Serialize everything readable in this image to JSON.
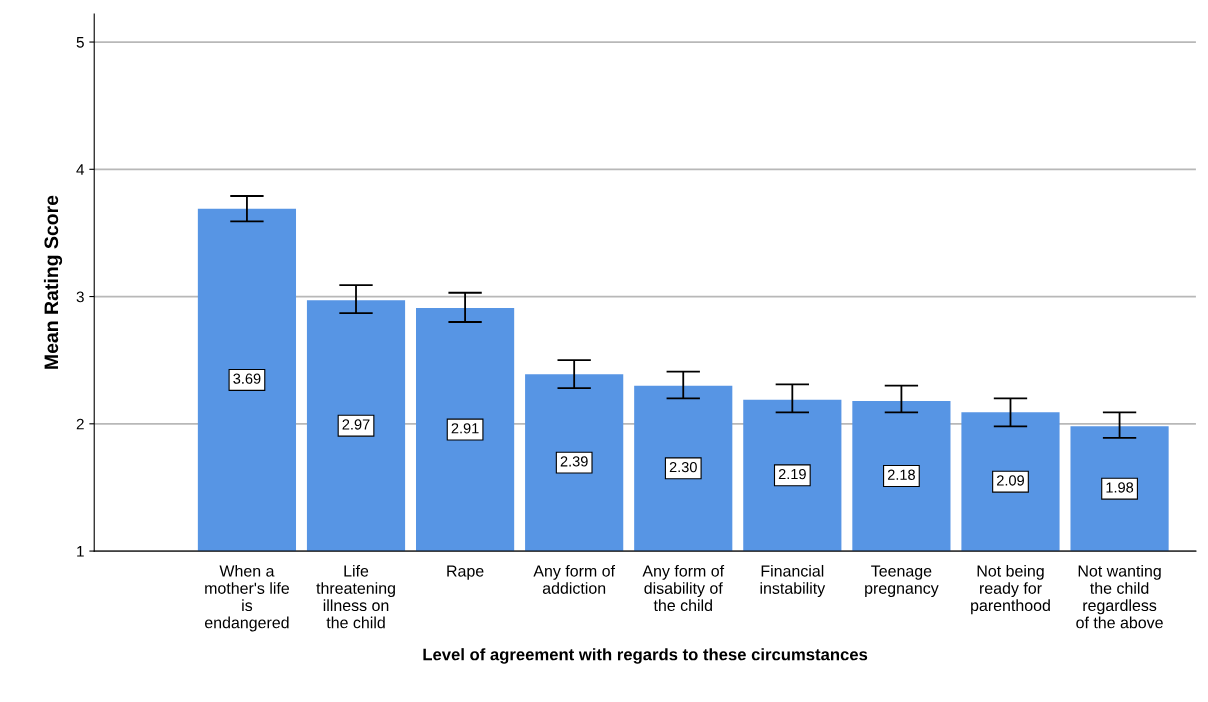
{
  "chart_data": {
    "type": "bar",
    "xlabel": "Level of agreement with regards to these circumstances",
    "ylabel": "Mean Rating Score",
    "categories": [
      "When a\nmother's life\nis\nendangered",
      "Life\nthreatening\nillness on\nthe child",
      "Rape",
      "Any form of\naddiction",
      "Any form of\ndisability of\nthe child",
      "Financial\ninstability",
      "Teenage\npregnancy",
      "Not being\nready for\nparenthood",
      "Not wanting\nthe child\nregardless\nof the above"
    ],
    "values": [
      3.69,
      2.97,
      2.91,
      2.39,
      2.3,
      2.19,
      2.18,
      2.09,
      1.98
    ],
    "value_labels": [
      "3.69",
      "2.97",
      "2.91",
      "2.39",
      "2.30",
      "2.19",
      "2.18",
      "2.09",
      "1.98"
    ],
    "errors": [
      [
        3.59,
        3.79
      ],
      [
        2.87,
        3.09
      ],
      [
        2.8,
        3.03
      ],
      [
        2.28,
        2.5
      ],
      [
        2.2,
        2.41
      ],
      [
        2.09,
        2.31
      ],
      [
        2.09,
        2.3
      ],
      [
        1.98,
        2.2
      ],
      [
        1.89,
        2.09
      ]
    ],
    "color": "#5795e4",
    "ylim": [
      1,
      5.22
    ],
    "yticks": [
      1,
      2,
      3,
      4,
      5
    ],
    "grid": "y"
  }
}
